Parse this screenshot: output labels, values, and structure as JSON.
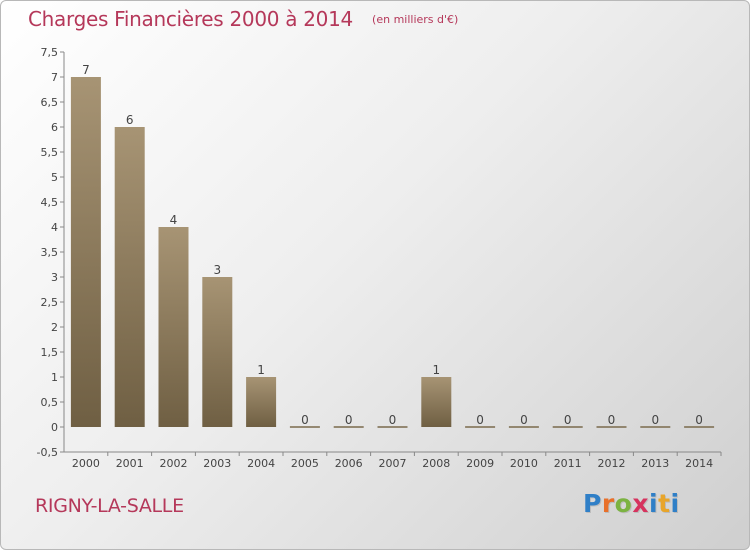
{
  "header": {
    "title": "Charges Financières 2000 à 2014",
    "subtitle": "(en milliers d'€)"
  },
  "footer": {
    "commune": "RIGNY-LA-SALLE",
    "logo": "Proxiti",
    "logo_letters": [
      {
        "ch": "P",
        "color": "#2f7fc7"
      },
      {
        "ch": "r",
        "color": "#e8702a"
      },
      {
        "ch": "o",
        "color": "#7cb342"
      },
      {
        "ch": "x",
        "color": "#d6335e"
      },
      {
        "ch": "i",
        "color": "#2f7fc7"
      },
      {
        "ch": "t",
        "color": "#e8a52a"
      },
      {
        "ch": "i",
        "color": "#2f7fc7"
      }
    ]
  },
  "chart_data": {
    "type": "bar",
    "categories": [
      "2000",
      "2001",
      "2002",
      "2003",
      "2004",
      "2005",
      "2006",
      "2007",
      "2008",
      "2009",
      "2010",
      "2011",
      "2012",
      "2013",
      "2014"
    ],
    "values": [
      7,
      6,
      4,
      3,
      1,
      0,
      0,
      0,
      1,
      0,
      0,
      0,
      0,
      0,
      0
    ],
    "data_labels": [
      "7",
      "6",
      "4",
      "3",
      "1",
      "0",
      "0",
      "0",
      "1",
      "0",
      "0",
      "0",
      "0",
      "0",
      "0"
    ],
    "ylim": [
      -0.5,
      7.5
    ],
    "yticks": [
      -0.5,
      0,
      0.5,
      1,
      1.5,
      2,
      2.5,
      3,
      3.5,
      4,
      4.5,
      5,
      5.5,
      6,
      6.5,
      7,
      7.5
    ],
    "ytick_labels": [
      "-0,5",
      "0",
      "0,5",
      "1",
      "1,5",
      "2",
      "2,5",
      "3",
      "3,5",
      "4",
      "4,5",
      "5",
      "5,5",
      "6",
      "6,5",
      "7",
      "7,5"
    ],
    "grid": false,
    "colors": {
      "bar_top": "#a79474",
      "bar_bottom": "#6f5f43",
      "axis": "#888888",
      "label": "#444444"
    }
  }
}
